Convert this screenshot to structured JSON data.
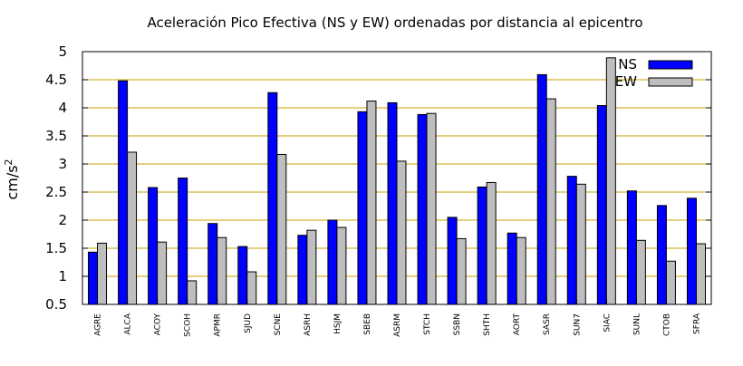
{
  "chart_data": {
    "type": "bar",
    "title": "Aceleración Pico Efectiva (NS y EW) ordenadas por distancia al epicentro",
    "ylabel_base": "cm/s",
    "ylabel_sup": "2",
    "xlabel": "",
    "ylim": [
      0.5,
      5
    ],
    "yticks": [
      0.5,
      1,
      1.5,
      2,
      2.5,
      3,
      3.5,
      4,
      4.5,
      5
    ],
    "grid": true,
    "grid_color": "#c8a000",
    "legend_position": "top-right",
    "categories": [
      "AGRE",
      "ALCA",
      "ACOY",
      "SCOH",
      "APMR",
      "SJUD",
      "SCNE",
      "ASRH",
      "HSJM",
      "SBEB",
      "ASRM",
      "STCH",
      "SSBN",
      "SHTH",
      "AORT",
      "SASR",
      "SUN7",
      "SIAC",
      "SUNL",
      "CTOB",
      "SFRA"
    ],
    "series": [
      {
        "name": "NS",
        "color": "#0000ff",
        "values": [
          1.43,
          4.48,
          2.58,
          2.75,
          1.94,
          1.53,
          4.27,
          1.73,
          2.0,
          3.93,
          4.09,
          3.88,
          2.05,
          2.59,
          1.77,
          4.59,
          2.78,
          4.04,
          2.52,
          2.26,
          2.39
        ]
      },
      {
        "name": "EW",
        "color": "#bebebe",
        "values": [
          1.59,
          3.21,
          1.61,
          0.92,
          1.69,
          1.08,
          3.17,
          1.82,
          1.87,
          4.12,
          3.05,
          3.9,
          1.67,
          2.67,
          1.69,
          4.16,
          2.64,
          4.89,
          1.64,
          1.27,
          1.58
        ]
      }
    ]
  }
}
